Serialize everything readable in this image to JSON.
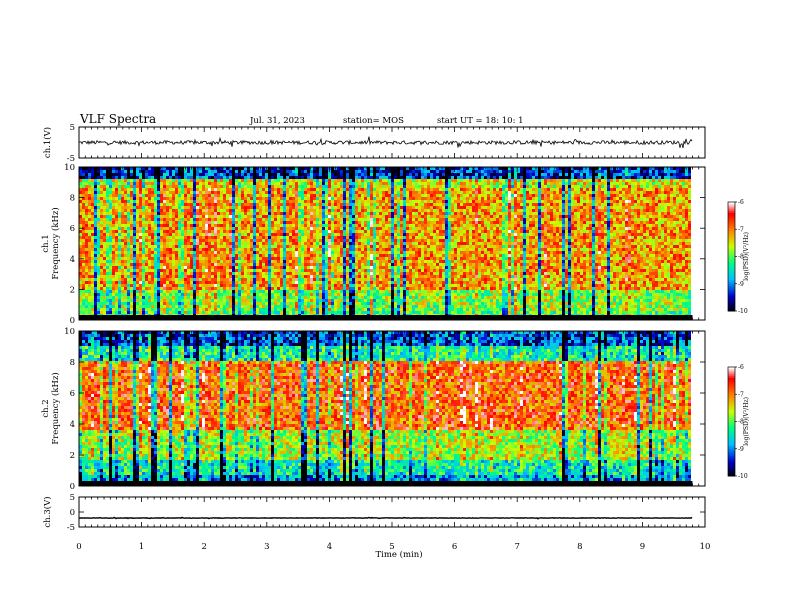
{
  "header": {
    "title": "VLF Spectra",
    "date": "Jul. 31, 2023",
    "station": "station= MOS",
    "start": "start  UT =   18: 10: 1"
  },
  "chart_data": [
    {
      "type": "line",
      "name": "ch1-waveform",
      "ylabel": "ch.1(V)",
      "ylim": [
        -5,
        5
      ],
      "yticks": [
        "5",
        "-5"
      ],
      "xlim": [
        0,
        10
      ],
      "data_end_x": 9.8,
      "baseline_y": 0
    },
    {
      "type": "heatmap",
      "name": "ch1-spectrogram",
      "ylabel": [
        "ch.1",
        "Frequency (kHz)"
      ],
      "ylim": [
        0,
        10
      ],
      "yticks": [
        "0",
        "2",
        "4",
        "6",
        "8",
        "10"
      ],
      "xlim": [
        0,
        10
      ],
      "data_end_x": 9.8,
      "colorbar": {
        "label": "log(PSD)(V²/Hz)",
        "range": [
          -10,
          -6
        ],
        "ticks": [
          "-6",
          "-7",
          "-8",
          "-9",
          "-10"
        ],
        "colors": [
          "#000000",
          "#0000cc",
          "#00c0ff",
          "#00ff80",
          "#c8ff00",
          "#ff8000",
          "#ff0000",
          "#ffffff"
        ]
      }
    },
    {
      "type": "heatmap",
      "name": "ch2-spectrogram",
      "ylabel": [
        "ch.2",
        "Frequency (kHz)"
      ],
      "ylim": [
        0,
        10
      ],
      "yticks": [
        "0",
        "2",
        "4",
        "6",
        "8",
        "10"
      ],
      "xlim": [
        0,
        10
      ],
      "data_end_x": 9.8,
      "colorbar": {
        "label": "log(PSD)(V²/Hz)",
        "range": [
          -10,
          -6
        ],
        "ticks": [
          "-6",
          "-7",
          "-8",
          "-9",
          "-10"
        ],
        "colors": [
          "#000000",
          "#0000cc",
          "#00c0ff",
          "#00ff80",
          "#c8ff00",
          "#ff8000",
          "#ff0000",
          "#ffffff"
        ]
      }
    },
    {
      "type": "line",
      "name": "ch3-waveform",
      "ylabel": "ch.3(V)",
      "ylim": [
        -5,
        5
      ],
      "yticks": [
        "5",
        "0",
        "-5"
      ],
      "xlim": [
        0,
        10
      ],
      "data_end_x": 9.8,
      "baseline_y": -2
    }
  ],
  "xaxis": {
    "label": "Time (min)",
    "ticks": [
      "0",
      "1",
      "2",
      "3",
      "4",
      "5",
      "6",
      "7",
      "8",
      "9",
      "10"
    ]
  }
}
